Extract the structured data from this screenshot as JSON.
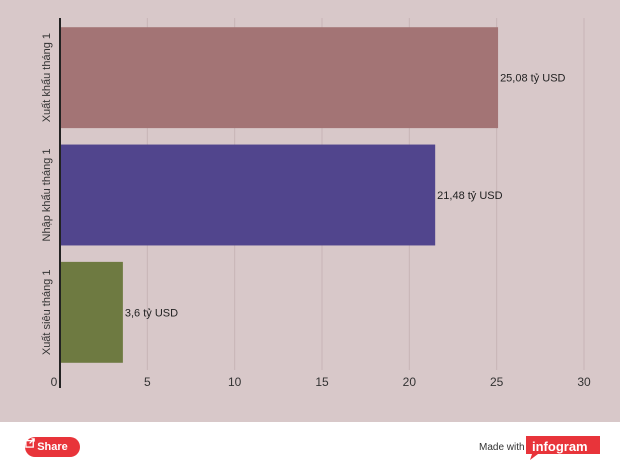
{
  "chart_data": {
    "type": "bar",
    "orientation": "horizontal",
    "categories": [
      "Xuất khẩu tháng 1",
      "Nhập khẩu tháng 1",
      "Xuất siêu tháng 1"
    ],
    "values": [
      25.08,
      21.48,
      3.6
    ],
    "data_labels": [
      "25,08 tỷ USD",
      "21,48 tỷ USD",
      "3,6 tỷ USD"
    ],
    "colors": [
      "#a37475",
      "#51458d",
      "#6e7a41"
    ],
    "xlim": [
      0,
      30
    ],
    "x_ticks": [
      0,
      5,
      10,
      15,
      20,
      25,
      30
    ],
    "grid": true,
    "legend": "none"
  },
  "footer": {
    "share_label": "Share",
    "made_with": "Made with",
    "brand": "infogram"
  },
  "colors": {
    "background": "#d8c8c9",
    "gridline": "#c7b5b6",
    "share_button": "#e8343a",
    "brand": "#e8343a"
  },
  "icons": {
    "share": "share-icon"
  }
}
